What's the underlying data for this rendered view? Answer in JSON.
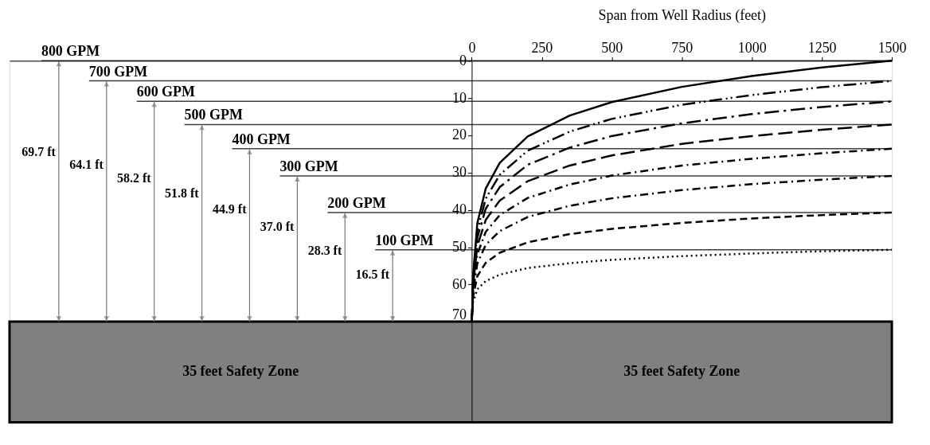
{
  "chart_data": {
    "type": "line",
    "xlabel": "Span from Well Radius (feet)",
    "xlim": [
      -1650,
      1500
    ],
    "xticks": [
      0,
      250,
      500,
      750,
      1000,
      1250,
      1500
    ],
    "ylim": [
      97,
      0
    ],
    "yticks": [
      0,
      10,
      20,
      30,
      40,
      50,
      60,
      70
    ],
    "x": [
      0,
      2,
      5,
      20,
      50,
      100,
      200,
      350,
      500,
      750,
      1000,
      1250,
      1500
    ],
    "series": [
      {
        "color": "#000000",
        "line_style": "solid",
        "values": [
          70,
          67,
          57.6,
          43.6,
          34.3,
          27.4,
          20.3,
          14.7,
          11.1,
          7.0,
          4.1,
          1.8,
          0
        ]
      },
      {
        "color": "#000000",
        "line_style": "dashdotdot",
        "values": [
          70,
          67,
          58.4,
          45.6,
          37.0,
          30.6,
          24.1,
          19.0,
          15.6,
          11.8,
          9.2,
          7.1,
          5.4
        ]
      },
      {
        "color": "#000000",
        "line_style": "longdashdot",
        "values": [
          70,
          67,
          59.2,
          47.5,
          39.7,
          33.9,
          27.9,
          23.3,
          20.2,
          16.8,
          14.3,
          12.4,
          10.9
        ]
      },
      {
        "color": "#000000",
        "line_style": "longdash",
        "values": [
          70,
          67,
          60.1,
          49.7,
          42.7,
          37.5,
          32.3,
          28.1,
          25.4,
          22.3,
          20.2,
          18.5,
          17.1
        ]
      },
      {
        "color": "#000000",
        "line_style": "dashdot",
        "values": [
          70,
          67,
          61.0,
          51.9,
          45.9,
          41.4,
          36.8,
          33.2,
          30.8,
          28.1,
          26.3,
          24.8,
          23.6
        ]
      },
      {
        "color": "#000000",
        "line_style": "dashdot",
        "values": [
          70,
          67,
          62.0,
          54.4,
          49.4,
          45.7,
          41.9,
          38.9,
          36.9,
          34.7,
          33.1,
          31.9,
          30.9
        ]
      },
      {
        "color": "#000000",
        "line_style": "dashed",
        "values": [
          70,
          67,
          63.3,
          57.8,
          54.2,
          51.5,
          48.7,
          46.5,
          45.1,
          43.5,
          42.3,
          41.4,
          40.7
        ]
      },
      {
        "color": "#000000",
        "line_style": "dotted",
        "values": [
          70,
          67,
          64.7,
          61.3,
          59.1,
          57.4,
          55.6,
          54.3,
          53.4,
          52.4,
          51.7,
          51.1,
          50.7
        ]
      }
    ],
    "ref_lines": [
      {
        "axis": "y",
        "value": 0,
        "label": "800 GPM",
        "color": "#404040"
      },
      {
        "axis": "y",
        "value": 5.4,
        "label": "700 GPM",
        "color": "#404040"
      },
      {
        "axis": "y",
        "value": 10.9,
        "label": "600 GPM",
        "color": "#404040"
      },
      {
        "axis": "y",
        "value": 17.1,
        "label": "500 GPM",
        "color": "#404040"
      },
      {
        "axis": "y",
        "value": 23.6,
        "label": "400 GPM",
        "color": "#404040"
      },
      {
        "axis": "y",
        "value": 30.9,
        "label": "300 GPM",
        "color": "#404040"
      },
      {
        "axis": "y",
        "value": 40.7,
        "label": "200 GPM",
        "color": "#404040"
      },
      {
        "axis": "y",
        "value": 50.7,
        "label": "100 GPM",
        "color": "#404040"
      }
    ],
    "bands": [
      {
        "axis": "y",
        "from": 70,
        "to": 97,
        "color": "#808080"
      }
    ],
    "annotations": [
      "69.7 ft",
      "64.1 ft",
      "58.2 ft",
      "51.8 ft",
      "44.9 ft",
      "37.0 ft",
      "28.3 ft",
      "16.5 ft",
      "35 feet Safety Zone",
      "35 feet Safety Zone"
    ],
    "grid": false
  }
}
